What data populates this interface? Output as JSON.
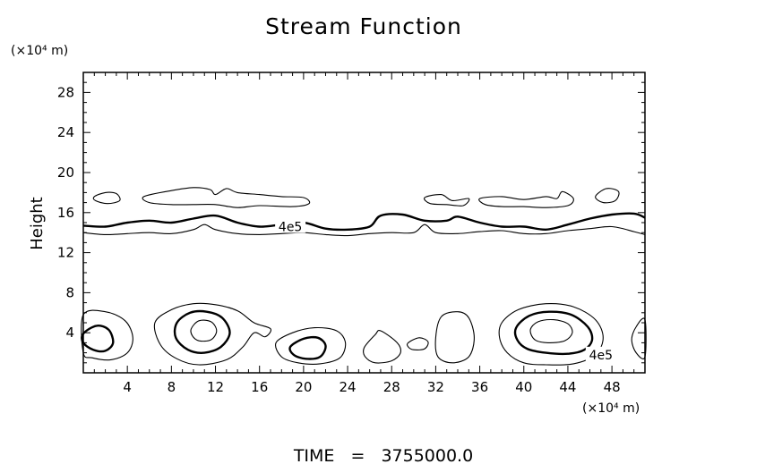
{
  "chart_data": {
    "type": "contour",
    "title": "Stream Function",
    "xlabel": "",
    "ylabel": "Height",
    "x_unit_label": "(×10⁴ m)",
    "y_unit_label": "(×10⁴ m)",
    "xlim": [
      0,
      51
    ],
    "ylim": [
      0,
      30
    ],
    "x_ticks": [
      4,
      8,
      12,
      16,
      20,
      24,
      28,
      32,
      36,
      40,
      44,
      48
    ],
    "y_ticks": [
      4,
      8,
      12,
      16,
      20,
      24,
      28
    ],
    "contour_labels": [
      {
        "text": "4e5",
        "x": 18.8,
        "y": 14.6
      },
      {
        "text": "4e5",
        "x": 47.0,
        "y": 1.8
      }
    ],
    "contours": [
      {
        "level": "thick",
        "points": [
          [
            0,
            14.7
          ],
          [
            2,
            14.6
          ],
          [
            4,
            15.0
          ],
          [
            6,
            15.2
          ],
          [
            8,
            15.0
          ],
          [
            10,
            15.4
          ],
          [
            12,
            15.7
          ],
          [
            14,
            15.0
          ],
          [
            16,
            14.6
          ],
          [
            18,
            14.8
          ],
          [
            20,
            15.0
          ],
          [
            22,
            14.4
          ],
          [
            24,
            14.3
          ],
          [
            26,
            14.6
          ],
          [
            27,
            15.7
          ],
          [
            29,
            15.8
          ],
          [
            31,
            15.2
          ],
          [
            33,
            15.2
          ],
          [
            34,
            15.6
          ],
          [
            36,
            15.0
          ],
          [
            38,
            14.6
          ],
          [
            40,
            14.6
          ],
          [
            42,
            14.3
          ],
          [
            44,
            14.8
          ],
          [
            46,
            15.4
          ],
          [
            48,
            15.8
          ],
          [
            50,
            15.9
          ],
          [
            51,
            15.5
          ]
        ]
      },
      {
        "level": "thin",
        "points": [
          [
            0,
            14.0
          ],
          [
            2,
            13.8
          ],
          [
            4,
            13.9
          ],
          [
            6,
            14.0
          ],
          [
            8,
            13.9
          ],
          [
            10,
            14.3
          ],
          [
            11,
            14.8
          ],
          [
            12,
            14.3
          ],
          [
            14,
            13.9
          ],
          [
            16,
            13.8
          ],
          [
            18,
            13.9
          ],
          [
            20,
            14.0
          ],
          [
            22,
            13.8
          ],
          [
            24,
            13.7
          ],
          [
            26,
            13.9
          ],
          [
            28,
            14.0
          ],
          [
            30,
            14.0
          ],
          [
            31,
            14.8
          ],
          [
            32,
            14.0
          ],
          [
            34,
            13.9
          ],
          [
            36,
            14.1
          ],
          [
            38,
            14.2
          ],
          [
            40,
            13.9
          ],
          [
            42,
            13.9
          ],
          [
            44,
            14.2
          ],
          [
            46,
            14.4
          ],
          [
            48,
            14.6
          ],
          [
            50,
            14.1
          ],
          [
            51,
            13.8
          ]
        ]
      },
      {
        "level": "thin",
        "closed": true,
        "points": [
          [
            1,
            17.6
          ],
          [
            2,
            18.0
          ],
          [
            3,
            17.9
          ],
          [
            3.3,
            17.2
          ],
          [
            2.2,
            16.9
          ],
          [
            1.1,
            17.2
          ]
        ]
      },
      {
        "level": "thin",
        "closed": true,
        "points": [
          [
            5.5,
            17.6
          ],
          [
            8,
            18.2
          ],
          [
            10,
            18.5
          ],
          [
            11.5,
            18.3
          ],
          [
            12,
            17.8
          ],
          [
            13,
            18.4
          ],
          [
            14,
            18.0
          ],
          [
            16,
            17.8
          ],
          [
            18,
            17.6
          ],
          [
            20,
            17.5
          ],
          [
            20.5,
            16.9
          ],
          [
            19,
            16.6
          ],
          [
            16,
            16.7
          ],
          [
            14,
            16.5
          ],
          [
            12,
            16.8
          ],
          [
            10,
            16.8
          ],
          [
            8,
            16.8
          ],
          [
            6,
            17.0
          ]
        ]
      },
      {
        "level": "thin",
        "closed": true,
        "points": [
          [
            31,
            17.5
          ],
          [
            32.5,
            17.8
          ],
          [
            33.5,
            17.2
          ],
          [
            35,
            17.4
          ],
          [
            34.5,
            16.7
          ],
          [
            33,
            16.8
          ],
          [
            31.5,
            16.9
          ]
        ]
      },
      {
        "level": "thin",
        "closed": true,
        "points": [
          [
            36,
            17.4
          ],
          [
            38,
            17.6
          ],
          [
            40,
            17.3
          ],
          [
            42,
            17.6
          ],
          [
            43,
            17.4
          ],
          [
            43.5,
            18.1
          ],
          [
            44.5,
            17.4
          ],
          [
            44,
            16.7
          ],
          [
            42,
            16.5
          ],
          [
            40,
            16.6
          ],
          [
            38,
            16.6
          ],
          [
            36.5,
            16.8
          ]
        ]
      },
      {
        "level": "thin",
        "closed": true,
        "points": [
          [
            46.5,
            17.6
          ],
          [
            47.5,
            18.4
          ],
          [
            48.6,
            18.1
          ],
          [
            48.3,
            17.2
          ],
          [
            47.2,
            17.0
          ]
        ]
      },
      {
        "level": "thin",
        "closed": true,
        "points": [
          [
            0,
            5.8
          ],
          [
            2,
            6.1
          ],
          [
            3.8,
            5.2
          ],
          [
            4.5,
            3.5
          ],
          [
            4,
            2.0
          ],
          [
            2.5,
            1.3
          ],
          [
            0.8,
            1.5
          ],
          [
            0,
            2.0
          ]
        ]
      },
      {
        "level": "thick",
        "closed": true,
        "points": [
          [
            0,
            3.9
          ],
          [
            1.2,
            4.7
          ],
          [
            2.3,
            4.3
          ],
          [
            2.7,
            3.0
          ],
          [
            2.0,
            2.2
          ],
          [
            0.9,
            2.3
          ],
          [
            0,
            3.0
          ]
        ]
      },
      {
        "level": "thin",
        "closed": true,
        "points": [
          [
            6.5,
            5.0
          ],
          [
            8,
            6.3
          ],
          [
            10,
            6.9
          ],
          [
            12,
            6.8
          ],
          [
            14,
            6.2
          ],
          [
            15.5,
            5.0
          ],
          [
            17,
            4.4
          ],
          [
            16.5,
            3.6
          ],
          [
            15.5,
            4.0
          ],
          [
            14.5,
            2.6
          ],
          [
            13,
            1.3
          ],
          [
            10.5,
            0.8
          ],
          [
            8.5,
            1.4
          ],
          [
            7,
            2.8
          ]
        ]
      },
      {
        "level": "thick",
        "closed": true,
        "points": [
          [
            8.5,
            5.0
          ],
          [
            9.7,
            6.0
          ],
          [
            11.2,
            6.1
          ],
          [
            12.6,
            5.5
          ],
          [
            13.3,
            4.0
          ],
          [
            12.5,
            2.6
          ],
          [
            11,
            2.0
          ],
          [
            9.5,
            2.3
          ],
          [
            8.4,
            3.5
          ]
        ]
      },
      {
        "level": "thin",
        "closed": true,
        "points": [
          [
            9.8,
            4.4
          ],
          [
            10.5,
            5.2
          ],
          [
            11.6,
            5.1
          ],
          [
            12.1,
            4.2
          ],
          [
            11.6,
            3.3
          ],
          [
            10.5,
            3.2
          ],
          [
            9.9,
            3.7
          ]
        ]
      },
      {
        "level": "thin",
        "closed": true,
        "points": [
          [
            17.5,
            3.0
          ],
          [
            19,
            4.0
          ],
          [
            21,
            4.5
          ],
          [
            23,
            4.2
          ],
          [
            23.8,
            3.0
          ],
          [
            23.3,
            1.5
          ],
          [
            21.5,
            0.9
          ],
          [
            19.5,
            1.0
          ],
          [
            18,
            1.6
          ]
        ]
      },
      {
        "level": "thick",
        "closed": true,
        "points": [
          [
            18.8,
            2.6
          ],
          [
            20,
            3.4
          ],
          [
            21.3,
            3.5
          ],
          [
            22,
            2.7
          ],
          [
            21.5,
            1.6
          ],
          [
            20.2,
            1.4
          ],
          [
            19.1,
            1.8
          ]
        ]
      },
      {
        "level": "thin",
        "closed": true,
        "points": [
          [
            25.5,
            2.5
          ],
          [
            26.5,
            3.8
          ],
          [
            27,
            4.2
          ],
          [
            28.5,
            3.0
          ],
          [
            28.8,
            2.0
          ],
          [
            28,
            1.2
          ],
          [
            26.5,
            1.0
          ],
          [
            25.6,
            1.6
          ]
        ]
      },
      {
        "level": "thin",
        "closed": true,
        "points": [
          [
            29.5,
            3.0
          ],
          [
            30.5,
            3.5
          ],
          [
            31.3,
            3.1
          ],
          [
            31,
            2.4
          ],
          [
            30,
            2.3
          ],
          [
            29.5,
            2.6
          ]
        ]
      },
      {
        "level": "thin",
        "closed": true,
        "points": [
          [
            32,
            3.5
          ],
          [
            32.5,
            5.6
          ],
          [
            34,
            6.1
          ],
          [
            35,
            5.5
          ],
          [
            35.5,
            3.5
          ],
          [
            35,
            1.6
          ],
          [
            33.5,
            1.0
          ],
          [
            32.2,
            1.6
          ]
        ]
      },
      {
        "level": "thin",
        "closed": true,
        "points": [
          [
            38,
            5.0
          ],
          [
            39.5,
            6.3
          ],
          [
            42,
            6.9
          ],
          [
            44.5,
            6.6
          ],
          [
            46.5,
            5.3
          ],
          [
            47.2,
            3.5
          ],
          [
            46.5,
            1.8
          ],
          [
            44.5,
            0.9
          ],
          [
            42,
            0.8
          ],
          [
            40,
            1.0
          ],
          [
            38.5,
            2.0
          ],
          [
            37.8,
            3.5
          ]
        ]
      },
      {
        "level": "thick",
        "closed": true,
        "points": [
          [
            39.3,
            4.5
          ],
          [
            40.5,
            5.7
          ],
          [
            42.3,
            6.1
          ],
          [
            44.3,
            5.8
          ],
          [
            45.8,
            4.6
          ],
          [
            46.2,
            3.3
          ],
          [
            45.5,
            2.3
          ],
          [
            44,
            1.9
          ],
          [
            42,
            2.0
          ],
          [
            40.3,
            2.4
          ],
          [
            39.4,
            3.3
          ]
        ]
      },
      {
        "level": "thin",
        "closed": true,
        "points": [
          [
            40.6,
            4.3
          ],
          [
            41.3,
            5.1
          ],
          [
            42.7,
            5.3
          ],
          [
            44,
            4.9
          ],
          [
            44.4,
            4.0
          ],
          [
            43.7,
            3.2
          ],
          [
            42.2,
            3.0
          ],
          [
            41,
            3.3
          ]
        ]
      },
      {
        "level": "thin",
        "closed": true,
        "points": [
          [
            51,
            5.3
          ],
          [
            50.2,
            4.6
          ],
          [
            49.8,
            3.3
          ],
          [
            50.2,
            2.0
          ],
          [
            51,
            1.6
          ]
        ]
      }
    ]
  },
  "footer": {
    "time_label": "TIME",
    "time_equals": "=",
    "time_value": "3755000.0"
  }
}
